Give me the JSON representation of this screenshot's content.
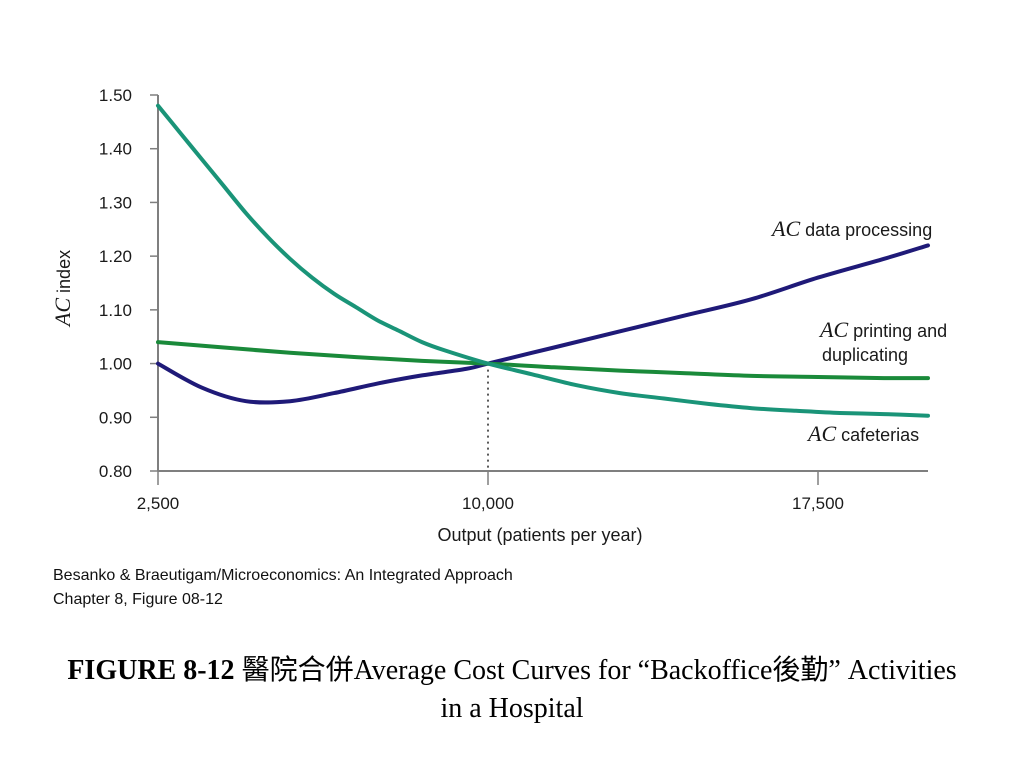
{
  "chart_data": {
    "type": "line",
    "xlabel": "Output (patients per year)",
    "ylabel_italic": "AC",
    "ylabel_rest": " index",
    "xlim": [
      2500,
      20000
    ],
    "ylim": [
      0.8,
      1.5
    ],
    "x_ticks": [
      2500,
      10000,
      17500
    ],
    "x_tick_labels": [
      "2,500",
      "10,000",
      "17,500"
    ],
    "y_ticks": [
      0.8,
      0.9,
      1.0,
      1.1,
      1.2,
      1.3,
      1.4,
      1.5
    ],
    "y_tick_labels": [
      "0.80",
      "0.90",
      "1.00",
      "1.10",
      "1.20",
      "1.30",
      "1.40",
      "1.50"
    ],
    "reference_line": {
      "x": 10000,
      "style": "dotted"
    },
    "series": [
      {
        "key": "data_processing",
        "name_italic": "AC",
        "name_rest": " data processing",
        "color": "#1f1a78",
        "points": [
          [
            2500,
            1.0
          ],
          [
            3500,
            0.955
          ],
          [
            4500,
            0.93
          ],
          [
            5500,
            0.93
          ],
          [
            6500,
            0.945
          ],
          [
            7500,
            0.963
          ],
          [
            8500,
            0.978
          ],
          [
            9500,
            0.99
          ],
          [
            10000,
            1.0
          ],
          [
            11500,
            1.03
          ],
          [
            13000,
            1.06
          ],
          [
            14500,
            1.09
          ],
          [
            16000,
            1.12
          ],
          [
            17500,
            1.16
          ],
          [
            19000,
            1.195
          ],
          [
            20000,
            1.22
          ]
        ]
      },
      {
        "key": "printing",
        "name_italic": "AC",
        "name_rest": " printing and",
        "name_line2": "duplicating",
        "color": "#1a8a3a",
        "points": [
          [
            2500,
            1.04
          ],
          [
            4000,
            1.03
          ],
          [
            5500,
            1.02
          ],
          [
            7000,
            1.012
          ],
          [
            8500,
            1.005
          ],
          [
            10000,
            1.0
          ],
          [
            11500,
            0.993
          ],
          [
            13000,
            0.987
          ],
          [
            14500,
            0.982
          ],
          [
            16000,
            0.977
          ],
          [
            17500,
            0.975
          ],
          [
            19000,
            0.973
          ],
          [
            20000,
            0.973
          ]
        ]
      },
      {
        "key": "cafeterias",
        "name_italic": "AC",
        "name_rest": " cafeterias",
        "color": "#1a9478",
        "points": [
          [
            2500,
            1.48
          ],
          [
            3000,
            1.43
          ],
          [
            3500,
            1.38
          ],
          [
            4000,
            1.33
          ],
          [
            4500,
            1.28
          ],
          [
            5000,
            1.235
          ],
          [
            5500,
            1.195
          ],
          [
            6000,
            1.16
          ],
          [
            6500,
            1.13
          ],
          [
            7000,
            1.105
          ],
          [
            7500,
            1.08
          ],
          [
            8000,
            1.06
          ],
          [
            8500,
            1.04
          ],
          [
            9000,
            1.025
          ],
          [
            10000,
            1.0
          ],
          [
            11000,
            0.98
          ],
          [
            12000,
            0.96
          ],
          [
            13000,
            0.945
          ],
          [
            14000,
            0.935
          ],
          [
            15000,
            0.925
          ],
          [
            16000,
            0.917
          ],
          [
            17000,
            0.912
          ],
          [
            18000,
            0.908
          ],
          [
            19000,
            0.906
          ],
          [
            20000,
            0.903
          ]
        ]
      }
    ]
  },
  "credit": {
    "line1": "Besanko & Braeutigam/Microeconomics: An Integrated Approach",
    "line2": "Chapter 8, Figure 08-12"
  },
  "caption": {
    "bold": "FIGURE 8-12",
    "rest_line1": " 醫院合併Average Cost Curves for “Backoffice後勤” Activities",
    "line2": "in a Hospital"
  }
}
